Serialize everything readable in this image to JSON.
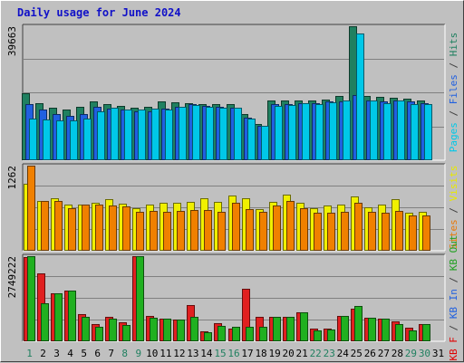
{
  "chart_data": {
    "type": "bar",
    "title": "Daily usage for June 2024",
    "categories": [
      "1",
      "2",
      "3",
      "4",
      "5",
      "6",
      "7",
      "8",
      "9",
      "10",
      "11",
      "12",
      "13",
      "14",
      "15",
      "16",
      "17",
      "18",
      "19",
      "20",
      "21",
      "22",
      "23",
      "24",
      "25",
      "26",
      "27",
      "28",
      "29",
      "30",
      "31"
    ],
    "weekend_days": [
      1,
      8,
      9,
      15,
      16,
      22,
      23,
      29,
      30
    ],
    "panels": [
      {
        "id": "top",
        "ymax_label": "39663",
        "ymax": 39663,
        "side_labels": [
          {
            "text": "Pages",
            "color": "#00c8e8"
          },
          {
            "text": " / ",
            "color": "#404040"
          },
          {
            "text": "Files",
            "color": "#2060e0"
          },
          {
            "text": " / ",
            "color": "#404040"
          },
          {
            "text": "Hits",
            "color": "#208060"
          }
        ],
        "series": [
          {
            "name": "Hits",
            "color": "#208060",
            "values": [
              19800,
              16800,
              15500,
              15000,
              15800,
              17400,
              16700,
              16000,
              15500,
              15700,
              17300,
              17200,
              16900,
              16700,
              16700,
              16600,
              13600,
              10800,
              17700,
              17700,
              17800,
              17600,
              17900,
              18900,
              39663,
              18900,
              18700,
              18400,
              18200,
              17700,
              null
            ]
          },
          {
            "name": "Files",
            "color": "#2060e0",
            "values": [
              16500,
              15100,
              13700,
              13000,
              13700,
              15800,
              15300,
              14900,
              14600,
              14600,
              15400,
              15700,
              16500,
              16000,
              15800,
              15600,
              12700,
              10300,
              16700,
              16600,
              16800,
              16900,
              17400,
              17400,
              19400,
              17700,
              17500,
              17700,
              17400,
              16900,
              null
            ]
          },
          {
            "name": "Pages",
            "color": "#00c8e8",
            "values": [
              12400,
              12100,
              11800,
              11800,
              12300,
              14600,
              15500,
              15100,
              14900,
              15200,
              15100,
              15700,
              16400,
              15800,
              15500,
              15500,
              12400,
              10100,
              16200,
              16300,
              16800,
              16500,
              17200,
              17600,
              37600,
              17800,
              16900,
              17600,
              16600,
              16600,
              null
            ]
          }
        ]
      },
      {
        "id": "middle",
        "ymax_label": "1262",
        "ymax": 1262,
        "side_labels": [
          {
            "text": "Sites",
            "color": "#e8780a"
          },
          {
            "text": " / ",
            "color": "#404040"
          },
          {
            "text": "Visits",
            "color": "#e8e800"
          }
        ],
        "series": [
          {
            "name": "Visits",
            "color": "#f0f000",
            "values": [
              1000,
              745,
              775,
              685,
              690,
              715,
              765,
              700,
              630,
              685,
              710,
              710,
              720,
              775,
              725,
              820,
              780,
              620,
              730,
              830,
              705,
              630,
              665,
              690,
              800,
              640,
              690,
              760,
              560,
              580,
              null
            ]
          },
          {
            "name": "Sites",
            "color": "#f08000",
            "values": [
              1262,
              745,
              735,
              630,
              685,
              680,
              675,
              655,
              580,
              585,
              580,
              595,
              600,
              600,
              575,
              710,
              620,
              580,
              665,
              740,
              625,
              560,
              565,
              580,
              705,
              580,
              570,
              590,
              530,
              520,
              null
            ]
          }
        ]
      },
      {
        "id": "bottom",
        "ymax_label": "2749222",
        "ymax": 2749222,
        "side_labels": [
          {
            "text": "KB F",
            "color": "#e00000"
          },
          {
            "text": " / ",
            "color": "#404040"
          },
          {
            "text": "KB In",
            "color": "#2060e0"
          },
          {
            "text": " / ",
            "color": "#404040"
          },
          {
            "text": "KB Out",
            "color": "#20a020"
          }
        ],
        "series": [
          {
            "name": "KB F",
            "color": "#e02020",
            "values": [
              2720000,
              2200000,
              1550000,
              1650000,
              880000,
              550000,
              780000,
              620000,
              2749222,
              830000,
              720000,
              690000,
              1160000,
              330000,
              580000,
              420000,
              1700000,
              780000,
              780000,
              780000,
              940000,
              400000,
              420000,
              830000,
              1050000,
              770000,
              720000,
              650000,
              440000,
              550000,
              null
            ]
          },
          {
            "name": "KB Out",
            "color": "#20b020",
            "values": [
              2749222,
              1220000,
              1560000,
              1650000,
              780000,
              480000,
              730000,
              520000,
              2749222,
              760000,
              720000,
              690000,
              790000,
              300000,
              510000,
              470000,
              470000,
              460000,
              780000,
              780000,
              940000,
              360000,
              390000,
              830000,
              1150000,
              760000,
              720000,
              560000,
              360000,
              550000,
              null
            ]
          }
        ]
      }
    ]
  }
}
